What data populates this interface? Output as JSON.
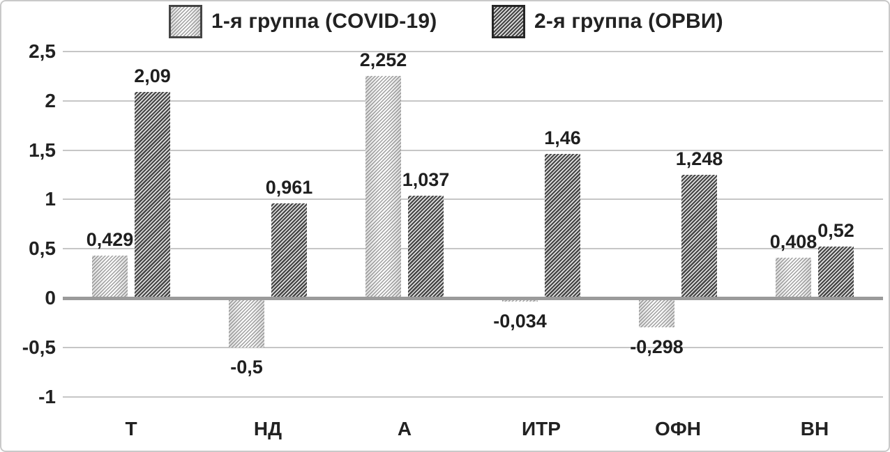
{
  "chart_data": {
    "type": "bar",
    "title": "",
    "categories": [
      "Т",
      "НД",
      "А",
      "ИТР",
      "ОФН",
      "ВН"
    ],
    "series": [
      {
        "name": "1-я группа (COVID-19)",
        "values": [
          0.429,
          -0.5,
          2.252,
          -0.034,
          -0.298,
          0.408
        ],
        "labels": [
          "0,429",
          "-0,5",
          "2,252",
          "-0,034",
          "-0,298",
          "0,408"
        ],
        "style": "light-hatch"
      },
      {
        "name": "2-я группа (ОРВИ)",
        "values": [
          2.09,
          0.961,
          1.037,
          1.46,
          1.248,
          0.52
        ],
        "labels": [
          "2,09",
          "0,961",
          "1,037",
          "1,46",
          "1,248",
          "0,52"
        ],
        "style": "dark-hatch"
      }
    ],
    "y_axis": {
      "min": -1,
      "max": 2.5,
      "step": 0.5,
      "tick_labels": [
        "2,5",
        "2",
        "1,5",
        "1",
        "0,5",
        "0",
        "-0,5",
        "-1"
      ]
    },
    "xlabel": "",
    "ylabel": "",
    "grid": true,
    "legend_position": "top",
    "decimal_separator": ",",
    "colors": {
      "text": "#222222",
      "gridline": "#c6c6c6",
      "zero_axis": "#9b9b9b",
      "hatch_light_line": "#a0a0a0",
      "hatch_dark_line": "#454545",
      "frame_border": "#c9c9c9"
    }
  }
}
